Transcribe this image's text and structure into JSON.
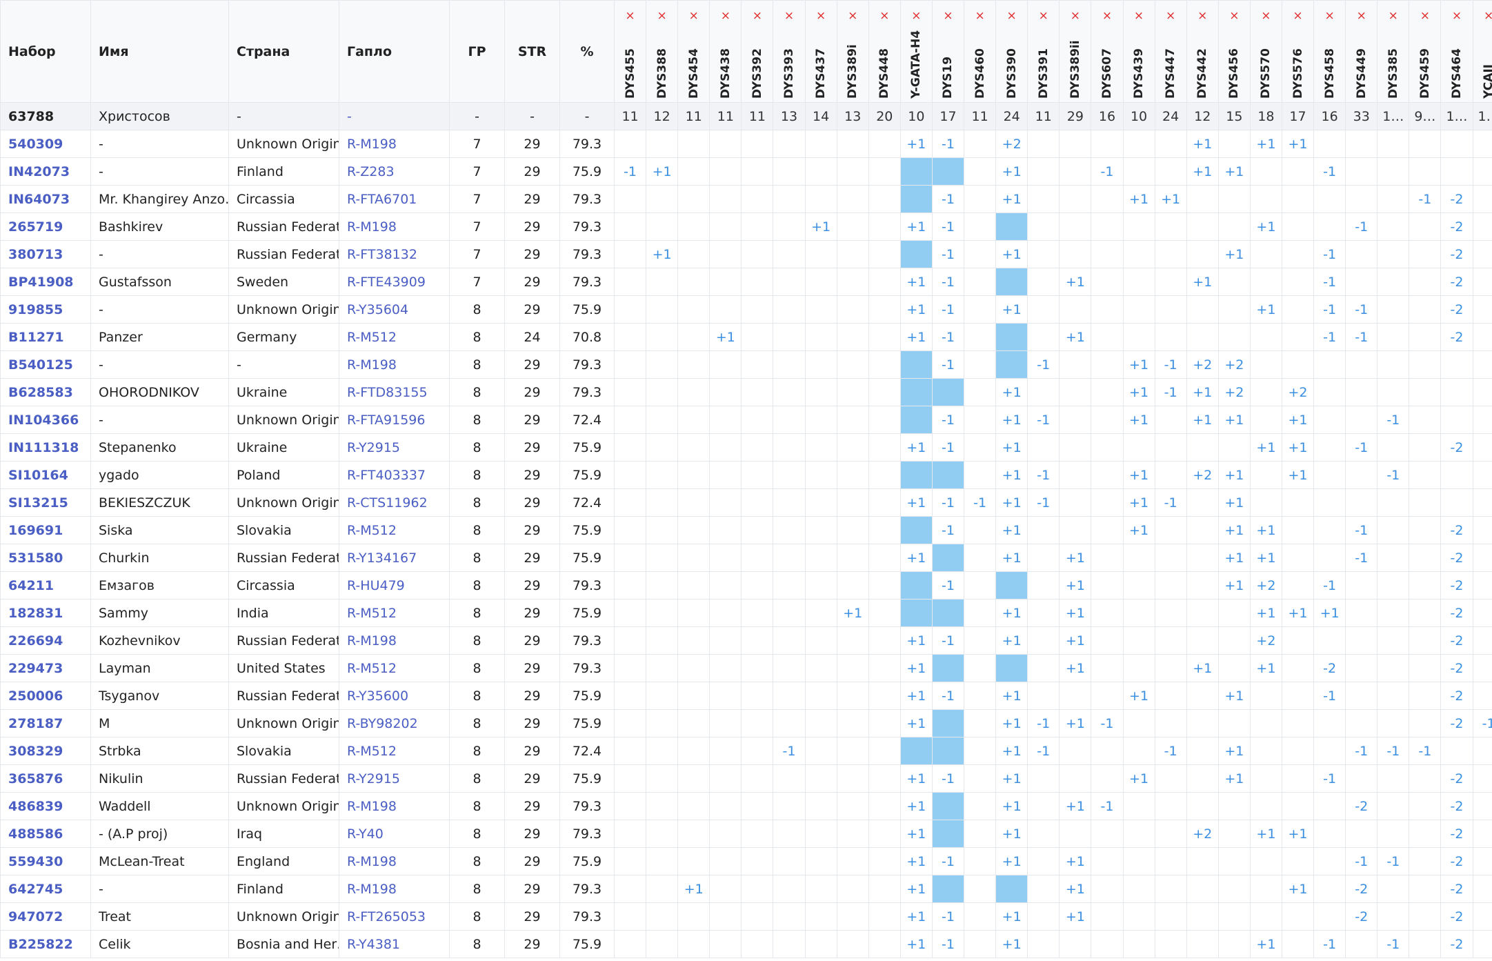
{
  "columns": [
    "Набор",
    "Имя",
    "Страна",
    "Гапло",
    "ГР",
    "STR",
    "%"
  ],
  "remove_mark": "×",
  "markers": [
    "DYS455",
    "DYS388",
    "DYS454",
    "DYS438",
    "DYS392",
    "DYS393",
    "DYS437",
    "DYS389i",
    "DYS448",
    "Y-GATA-H4",
    "DYS19",
    "DYS460",
    "DYS390",
    "DYS391",
    "DYS389ii",
    "DYS607",
    "DYS439",
    "DYS447",
    "DYS442",
    "DYS456",
    "DYS570",
    "DYS576",
    "DYS458",
    "DYS449",
    "DYS385",
    "DYS459",
    "DYS464",
    "YCAII"
  ],
  "reference": {
    "kit": "63788",
    "name": "Христосов",
    "country": "-",
    "haplo": "-",
    "gd": "-",
    "str": "-",
    "pct": "-",
    "values": [
      "11",
      "12",
      "11",
      "11",
      "11",
      "13",
      "14",
      "13",
      "20",
      "10",
      "17",
      "11",
      "24",
      "11",
      "29",
      "16",
      "10",
      "24",
      "12",
      "15",
      "18",
      "17",
      "16",
      "33",
      "1…",
      "9…",
      "1…",
      "1…"
    ]
  },
  "rows": [
    {
      "kit": "540309",
      "name": "-",
      "country": "Unknown Origin",
      "haplo": "R-M198",
      "gd": 7,
      "str": 29,
      "pct": 79.3,
      "diffs": {
        "9": "+1",
        "10": "-1",
        "12": "+2",
        "18": "+1",
        "20": "+1",
        "21": "+1"
      },
      "highlight": []
    },
    {
      "kit": "IN42073",
      "name": "-",
      "country": "Finland",
      "haplo": "R-Z283",
      "gd": 7,
      "str": 29,
      "pct": 75.9,
      "diffs": {
        "0": "-1",
        "1": "+1",
        "12": "+1",
        "15": "-1",
        "18": "+1",
        "19": "+1",
        "22": "-1"
      },
      "highlight": [
        9,
        10
      ]
    },
    {
      "kit": "IN64073",
      "name": "Mr. Khangirey Anzo…",
      "country": "Circassia",
      "haplo": "R-FTA6701",
      "gd": 7,
      "str": 29,
      "pct": 79.3,
      "diffs": {
        "10": "-1",
        "12": "+1",
        "16": "+1",
        "17": "+1",
        "25": "-1",
        "26": "-2"
      },
      "highlight": [
        9
      ]
    },
    {
      "kit": "265719",
      "name": "Bashkirev",
      "country": "Russian Federat…",
      "haplo": "R-M198",
      "gd": 7,
      "str": 29,
      "pct": 79.3,
      "diffs": {
        "6": "+1",
        "9": "+1",
        "10": "-1",
        "20": "+1",
        "23": "-1",
        "26": "-2"
      },
      "highlight": [
        12
      ]
    },
    {
      "kit": "380713",
      "name": "-",
      "country": "Russian Federat…",
      "haplo": "R-FT38132",
      "gd": 7,
      "str": 29,
      "pct": 79.3,
      "diffs": {
        "1": "+1",
        "10": "-1",
        "12": "+1",
        "19": "+1",
        "22": "-1",
        "26": "-2"
      },
      "highlight": [
        9
      ]
    },
    {
      "kit": "BP41908",
      "name": "Gustafsson",
      "country": "Sweden",
      "haplo": "R-FTE43909",
      "gd": 7,
      "str": 29,
      "pct": 79.3,
      "diffs": {
        "9": "+1",
        "10": "-1",
        "14": "+1",
        "18": "+1",
        "22": "-1",
        "26": "-2"
      },
      "highlight": [
        12
      ]
    },
    {
      "kit": "919855",
      "name": "-",
      "country": "Unknown Origin",
      "haplo": "R-Y35604",
      "gd": 8,
      "str": 29,
      "pct": 75.9,
      "diffs": {
        "9": "+1",
        "10": "-1",
        "12": "+1",
        "20": "+1",
        "22": "-1",
        "23": "-1",
        "26": "-2"
      },
      "highlight": []
    },
    {
      "kit": "B11271",
      "name": "Panzer",
      "country": "Germany",
      "haplo": "R-M512",
      "gd": 8,
      "str": 24,
      "pct": 70.8,
      "diffs": {
        "3": "+1",
        "9": "+1",
        "10": "-1",
        "14": "+1",
        "22": "-1",
        "23": "-1",
        "26": "-2"
      },
      "highlight": [
        12
      ]
    },
    {
      "kit": "B540125",
      "name": "-",
      "country": "-",
      "haplo": "R-M198",
      "gd": 8,
      "str": 29,
      "pct": 79.3,
      "diffs": {
        "10": "-1",
        "13": "-1",
        "16": "+1",
        "17": "-1",
        "18": "+2",
        "19": "+2"
      },
      "highlight": [
        9,
        12
      ]
    },
    {
      "kit": "B628583",
      "name": "OHORODNIKOV",
      "country": "Ukraine",
      "haplo": "R-FTD83155",
      "gd": 8,
      "str": 29,
      "pct": 79.3,
      "diffs": {
        "12": "+1",
        "16": "+1",
        "17": "-1",
        "18": "+1",
        "19": "+2",
        "21": "+2"
      },
      "highlight": [
        9,
        10
      ]
    },
    {
      "kit": "IN104366",
      "name": "-",
      "country": "Unknown Origin",
      "haplo": "R-FTA91596",
      "gd": 8,
      "str": 29,
      "pct": 72.4,
      "diffs": {
        "10": "-1",
        "12": "+1",
        "13": "-1",
        "16": "+1",
        "18": "+1",
        "19": "+1",
        "21": "+1",
        "24": "-1"
      },
      "highlight": [
        9
      ]
    },
    {
      "kit": "IN111318",
      "name": "Stepanenko",
      "country": "Ukraine",
      "haplo": "R-Y2915",
      "gd": 8,
      "str": 29,
      "pct": 75.9,
      "diffs": {
        "9": "+1",
        "10": "-1",
        "12": "+1",
        "20": "+1",
        "21": "+1",
        "23": "-1",
        "26": "-2"
      },
      "highlight": []
    },
    {
      "kit": "SI10164",
      "name": "ygado",
      "country": "Poland",
      "haplo": "R-FT403337",
      "gd": 8,
      "str": 29,
      "pct": 75.9,
      "diffs": {
        "12": "+1",
        "13": "-1",
        "16": "+1",
        "18": "+2",
        "19": "+1",
        "21": "+1",
        "24": "-1"
      },
      "highlight": [
        9,
        10
      ]
    },
    {
      "kit": "SI13215",
      "name": "BEKIESZCZUK",
      "country": "Unknown Origin",
      "haplo": "R-CTS11962",
      "gd": 8,
      "str": 29,
      "pct": 72.4,
      "diffs": {
        "9": "+1",
        "10": "-1",
        "11": "-1",
        "12": "+1",
        "13": "-1",
        "16": "+1",
        "17": "-1",
        "19": "+1"
      },
      "highlight": []
    },
    {
      "kit": "169691",
      "name": "Siska",
      "country": "Slovakia",
      "haplo": "R-M512",
      "gd": 8,
      "str": 29,
      "pct": 75.9,
      "diffs": {
        "10": "-1",
        "12": "+1",
        "16": "+1",
        "19": "+1",
        "20": "+1",
        "23": "-1",
        "26": "-2"
      },
      "highlight": [
        9
      ]
    },
    {
      "kit": "531580",
      "name": "Churkin",
      "country": "Russian Federat…",
      "haplo": "R-Y134167",
      "gd": 8,
      "str": 29,
      "pct": 75.9,
      "diffs": {
        "9": "+1",
        "12": "+1",
        "14": "+1",
        "19": "+1",
        "20": "+1",
        "23": "-1",
        "26": "-2"
      },
      "highlight": [
        10
      ]
    },
    {
      "kit": "64211",
      "name": "Емзагов",
      "country": "Circassia",
      "haplo": "R-HU479",
      "gd": 8,
      "str": 29,
      "pct": 79.3,
      "diffs": {
        "10": "-1",
        "14": "+1",
        "19": "+1",
        "20": "+2",
        "22": "-1",
        "26": "-2"
      },
      "highlight": [
        9,
        12
      ]
    },
    {
      "kit": "182831",
      "name": "Sammy",
      "country": "India",
      "haplo": "R-M512",
      "gd": 8,
      "str": 29,
      "pct": 75.9,
      "diffs": {
        "7": "+1",
        "12": "+1",
        "14": "+1",
        "20": "+1",
        "21": "+1",
        "22": "+1",
        "26": "-2"
      },
      "highlight": [
        9,
        10
      ]
    },
    {
      "kit": "226694",
      "name": "Kozhevnikov",
      "country": "Russian Federat…",
      "haplo": "R-M198",
      "gd": 8,
      "str": 29,
      "pct": 79.3,
      "diffs": {
        "9": "+1",
        "10": "-1",
        "12": "+1",
        "14": "+1",
        "20": "+2",
        "26": "-2"
      },
      "highlight": []
    },
    {
      "kit": "229473",
      "name": "Layman",
      "country": "United States",
      "haplo": "R-M512",
      "gd": 8,
      "str": 29,
      "pct": 79.3,
      "diffs": {
        "9": "+1",
        "14": "+1",
        "18": "+1",
        "20": "+1",
        "22": "-2",
        "26": "-2"
      },
      "highlight": [
        10,
        12
      ]
    },
    {
      "kit": "250006",
      "name": "Tsyganov",
      "country": "Russian Federat…",
      "haplo": "R-Y35600",
      "gd": 8,
      "str": 29,
      "pct": 75.9,
      "diffs": {
        "9": "+1",
        "10": "-1",
        "12": "+1",
        "16": "+1",
        "19": "+1",
        "22": "-1",
        "26": "-2"
      },
      "highlight": []
    },
    {
      "kit": "278187",
      "name": "M",
      "country": "Unknown Origin",
      "haplo": "R-BY98202",
      "gd": 8,
      "str": 29,
      "pct": 75.9,
      "diffs": {
        "9": "+1",
        "12": "+1",
        "13": "-1",
        "14": "+1",
        "15": "-1",
        "26": "-2",
        "27": "-1"
      },
      "highlight": [
        10
      ]
    },
    {
      "kit": "308329",
      "name": "Strbka",
      "country": "Slovakia",
      "haplo": "R-M512",
      "gd": 8,
      "str": 29,
      "pct": 72.4,
      "diffs": {
        "5": "-1",
        "12": "+1",
        "13": "-1",
        "17": "-1",
        "19": "+1",
        "23": "-1",
        "24": "-1",
        "25": "-1"
      },
      "highlight": [
        9,
        10
      ]
    },
    {
      "kit": "365876",
      "name": "Nikulin",
      "country": "Russian Federat…",
      "haplo": "R-Y2915",
      "gd": 8,
      "str": 29,
      "pct": 75.9,
      "diffs": {
        "9": "+1",
        "10": "-1",
        "12": "+1",
        "16": "+1",
        "19": "+1",
        "22": "-1",
        "26": "-2"
      },
      "highlight": []
    },
    {
      "kit": "486839",
      "name": "Waddell",
      "country": "Unknown Origin",
      "haplo": "R-M198",
      "gd": 8,
      "str": 29,
      "pct": 79.3,
      "diffs": {
        "9": "+1",
        "12": "+1",
        "14": "+1",
        "15": "-1",
        "23": "-2",
        "26": "-2"
      },
      "highlight": [
        10
      ]
    },
    {
      "kit": "488586",
      "name": "- (A.P proj)",
      "country": "Iraq",
      "haplo": "R-Y40",
      "gd": 8,
      "str": 29,
      "pct": 79.3,
      "diffs": {
        "9": "+1",
        "12": "+1",
        "18": "+2",
        "20": "+1",
        "21": "+1",
        "26": "-2"
      },
      "highlight": [
        10
      ]
    },
    {
      "kit": "559430",
      "name": "McLean-Treat",
      "country": "England",
      "haplo": "R-M198",
      "gd": 8,
      "str": 29,
      "pct": 75.9,
      "diffs": {
        "9": "+1",
        "10": "-1",
        "12": "+1",
        "14": "+1",
        "23": "-1",
        "24": "-1",
        "26": "-2"
      },
      "highlight": []
    },
    {
      "kit": "642745",
      "name": "-",
      "country": "Finland",
      "haplo": "R-M198",
      "gd": 8,
      "str": 29,
      "pct": 79.3,
      "diffs": {
        "2": "+1",
        "9": "+1",
        "14": "+1",
        "21": "+1",
        "23": "-2",
        "26": "-2"
      },
      "highlight": [
        10,
        12
      ]
    },
    {
      "kit": "947072",
      "name": "Treat",
      "country": "Unknown Origin",
      "haplo": "R-FT265053",
      "gd": 8,
      "str": 29,
      "pct": 79.3,
      "diffs": {
        "9": "+1",
        "10": "-1",
        "12": "+1",
        "14": "+1",
        "23": "-2",
        "26": "-2"
      },
      "highlight": []
    },
    {
      "kit": "B225822",
      "name": "Celik",
      "country": "Bosnia and Her…",
      "haplo": "R-Y4381",
      "gd": 8,
      "str": 29,
      "pct": 75.9,
      "diffs": {
        "9": "+1",
        "10": "-1",
        "12": "+1",
        "20": "+1",
        "22": "-1",
        "24": "-1",
        "26": "-2"
      },
      "highlight": []
    }
  ]
}
